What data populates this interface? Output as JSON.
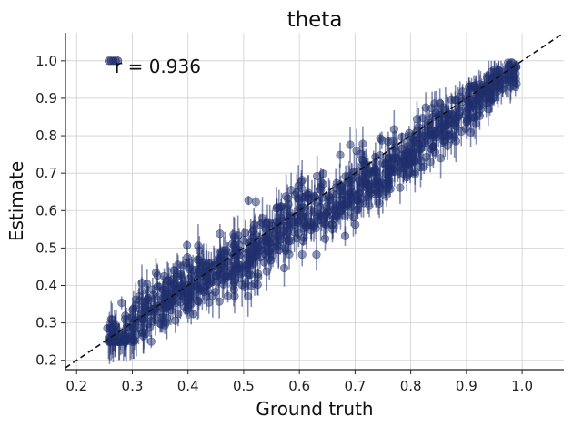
{
  "chart_data": {
    "type": "scatter",
    "title": "theta",
    "xlabel": "Ground truth",
    "ylabel": "Estimate",
    "xlim": [
      0.18,
      1.075
    ],
    "ylim": [
      0.175,
      1.075
    ],
    "x_ticks": [
      "0.2",
      "0.3",
      "0.4",
      "0.5",
      "0.6",
      "0.7",
      "0.8",
      "0.9",
      "1.0"
    ],
    "y_ticks": [
      "0.2",
      "0.3",
      "0.4",
      "0.5",
      "0.6",
      "0.7",
      "0.8",
      "0.9",
      "1.0"
    ],
    "grid": true,
    "annotation": "r = 0.936",
    "reference_line": {
      "style": "dashed",
      "slope": 1,
      "intercept": 0,
      "color": "#111111"
    },
    "marker_color": "#1f2f6e",
    "n_points": 1000,
    "trend_y_at_x": [
      [
        0.26,
        0.25
      ],
      [
        0.3,
        0.29
      ],
      [
        0.35,
        0.36
      ],
      [
        0.4,
        0.39
      ],
      [
        0.45,
        0.43
      ],
      [
        0.5,
        0.47
      ],
      [
        0.55,
        0.53
      ],
      [
        0.6,
        0.59
      ],
      [
        0.65,
        0.62
      ],
      [
        0.7,
        0.66
      ],
      [
        0.75,
        0.7
      ],
      [
        0.8,
        0.75
      ],
      [
        0.85,
        0.82
      ],
      [
        0.9,
        0.88
      ],
      [
        0.95,
        0.94
      ],
      [
        0.99,
        0.98
      ]
    ],
    "scatter_sd": 0.035,
    "error_bar_half_range": [
      0.01,
      0.06
    ]
  }
}
